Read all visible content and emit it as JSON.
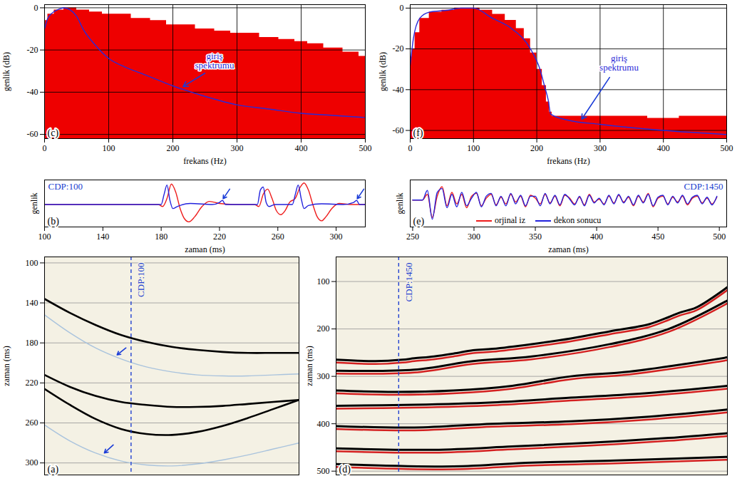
{
  "chart_data": [
    {
      "type": "line",
      "title": "(a)",
      "y_label": "zaman (ms)",
      "xlim": [
        0,
        100
      ],
      "ylim": [
        312,
        94
      ],
      "yticks": [
        100,
        140,
        180,
        220,
        260,
        300
      ],
      "tick_labels": "y",
      "grid": true,
      "series": [
        {
          "color": "#000000",
          "x": [
            0,
            10,
            20,
            30,
            40,
            50,
            60,
            70,
            80,
            90,
            100
          ],
          "values": [
            136,
            150,
            162,
            172,
            179,
            184,
            187,
            189,
            190,
            190,
            190
          ]
        },
        {
          "color": "#000000",
          "x": [
            0,
            10,
            20,
            30,
            40,
            50,
            60,
            70,
            80,
            90,
            100
          ],
          "values": [
            212,
            224,
            233,
            239,
            242,
            244,
            244,
            243,
            241,
            239,
            237
          ]
        },
        {
          "color": "#000000",
          "x": [
            0,
            10,
            20,
            30,
            40,
            50,
            60,
            70,
            80,
            90,
            100
          ],
          "values": [
            226,
            242,
            256,
            266,
            271,
            272,
            269,
            263,
            255,
            246,
            237
          ]
        },
        {
          "color": "#a9c3dd",
          "x": [
            0,
            10,
            20,
            30,
            40,
            50,
            60,
            70,
            80,
            90,
            100
          ],
          "values": [
            152,
            170,
            185,
            196,
            204,
            209,
            212,
            213,
            213,
            212,
            211
          ]
        },
        {
          "color": "#a9c3dd",
          "x": [
            0,
            10,
            20,
            30,
            40,
            50,
            60,
            70,
            80,
            90,
            100
          ],
          "values": [
            262,
            278,
            290,
            298,
            302,
            303,
            301,
            297,
            292,
            286,
            280
          ]
        }
      ],
      "annotations": [
        {
          "text": "CDP:100",
          "x": 34
        }
      ],
      "arrows": [
        {
          "x1": 32,
          "y1": 185,
          "x2": 28.5,
          "y2": 192
        },
        {
          "x1": 27,
          "y1": 282,
          "x2": 23.5,
          "y2": 290
        }
      ]
    },
    {
      "type": "line",
      "title": "(b)",
      "x_label": "zaman (ms)",
      "y_label": "genlik",
      "xlim": [
        100,
        320
      ],
      "xticks": [
        100,
        140,
        180,
        220,
        260,
        300
      ],
      "ylim": [
        -1.1,
        1.2
      ],
      "tick_labels": "x",
      "series": [
        {
          "color": "#ee1c1c",
          "x": [
            100,
            178,
            181,
            184,
            187,
            190,
            193,
            196,
            199,
            203,
            208,
            213,
            220,
            230,
            244,
            247,
            250,
            253,
            256,
            259,
            262,
            265,
            268,
            272,
            275,
            278,
            281,
            284,
            287,
            290,
            293,
            297,
            302,
            310,
            320
          ],
          "values": [
            0,
            0,
            -0.1,
            0.3,
            1.0,
            0.6,
            -0.2,
            -0.7,
            -0.85,
            -0.6,
            -0.1,
            0.15,
            0.05,
            0,
            0,
            -0.1,
            0.5,
            0.75,
            0.3,
            -0.3,
            -0.5,
            -0.3,
            0.1,
            0.3,
            0.8,
            1.05,
            0.7,
            0,
            -0.6,
            -0.8,
            -0.6,
            -0.2,
            0.05,
            0,
            0
          ]
        },
        {
          "color": "#2222dd",
          "x": [
            100,
            180,
            182,
            184,
            186,
            188,
            191,
            200,
            215,
            220,
            222,
            224,
            240,
            246,
            248,
            250,
            252,
            254,
            258,
            270,
            272,
            274,
            276,
            278,
            281,
            290,
            305,
            312,
            314,
            316,
            320
          ],
          "values": [
            0,
            0,
            0.5,
            0.95,
            0.2,
            -0.2,
            -0.1,
            0.05,
            0,
            0.1,
            0.2,
            0,
            0,
            0,
            0.7,
            0.85,
            0.1,
            -0.1,
            0,
            0,
            0.5,
            0.95,
            0.3,
            -0.2,
            -0.05,
            0.03,
            0,
            0.1,
            0.2,
            0,
            0
          ]
        }
      ],
      "annotations": [
        {
          "text": "CDP:100"
        }
      ],
      "arrows": [
        {
          "x1": 227,
          "y1": 0.75,
          "x2": 222.5,
          "y2": 0.28
        },
        {
          "x1": 319,
          "y1": 0.75,
          "x2": 314.5,
          "y2": 0.28
        }
      ]
    },
    {
      "type": "area",
      "title": "(c)",
      "x_label": "frekans (Hz)",
      "y_label": "genlik (dB)",
      "xlim": [
        0,
        500
      ],
      "xticks": [
        0,
        100,
        200,
        300,
        400,
        500
      ],
      "ylim": [
        -62,
        1.5
      ],
      "yticks": [
        0,
        -20,
        -40,
        -60
      ],
      "grid": true,
      "series": [
        {
          "type": "area",
          "color": "#ee0000",
          "x": [
            0,
            10,
            20,
            40,
            60,
            80,
            100,
            120,
            150,
            180,
            200,
            220,
            250,
            280,
            300,
            320,
            350,
            380,
            400,
            420,
            450,
            480,
            500
          ],
          "values": [
            -6,
            -3,
            -1,
            0,
            -1,
            -2,
            -3,
            -3,
            -5,
            -6,
            -8,
            -8,
            -10,
            -11,
            -12,
            -12,
            -14,
            -15,
            -16,
            -17,
            -19,
            -21,
            -23
          ]
        },
        {
          "type": "line",
          "color": "#2a2ad8",
          "x": [
            0,
            5,
            10,
            20,
            30,
            40,
            50,
            60,
            80,
            100,
            125,
            150,
            175,
            200,
            250,
            300,
            350,
            400,
            450,
            500
          ],
          "values": [
            -10,
            -5,
            -3,
            -1,
            0,
            -1,
            -4,
            -10,
            -18,
            -24,
            -28,
            -31,
            -34,
            -37,
            -42,
            -46,
            -48,
            -50,
            -51,
            -52
          ]
        }
      ],
      "annotations": [
        {
          "text": "giriş spektrumu",
          "x": 265,
          "y": -25
        }
      ],
      "arrows": [
        {
          "x1": 250,
          "y1": -31,
          "x2": 216,
          "y2": -37.3
        }
      ]
    },
    {
      "type": "line",
      "title": "(d)",
      "y_label": "zaman (ms)",
      "xlim": [
        0,
        100
      ],
      "ylim": [
        508,
        48
      ],
      "yticks": [
        100,
        200,
        300,
        400,
        500
      ],
      "tick_labels": "y",
      "grid": true,
      "series": [
        {
          "color": "#000000",
          "x": [
            0,
            10,
            17,
            20,
            25,
            30,
            35,
            40,
            50,
            60,
            70,
            80,
            85,
            88,
            92,
            100
          ],
          "values": [
            265,
            268,
            265,
            262,
            258,
            252,
            245,
            242,
            232,
            220,
            205,
            190,
            175,
            165,
            155,
            112
          ]
        },
        {
          "color": "#000000",
          "x": [
            0,
            20,
            35,
            50,
            70,
            85,
            100
          ],
          "values": [
            288,
            286,
            268,
            258,
            232,
            200,
            140
          ]
        },
        {
          "color": "#000000",
          "x": [
            0,
            15,
            30,
            45,
            60,
            75,
            100
          ],
          "values": [
            330,
            333,
            330,
            320,
            300,
            290,
            260
          ]
        },
        {
          "color": "#000000",
          "x": [
            0,
            20,
            40,
            60,
            80,
            100
          ],
          "values": [
            362,
            360,
            355,
            345,
            335,
            320
          ]
        },
        {
          "color": "#000000",
          "x": [
            0,
            20,
            40,
            60,
            80,
            100
          ],
          "values": [
            405,
            408,
            400,
            395,
            385,
            370
          ]
        },
        {
          "color": "#000000",
          "x": [
            0,
            25,
            45,
            65,
            85,
            100
          ],
          "values": [
            452,
            455,
            448,
            440,
            430,
            420
          ]
        },
        {
          "color": "#000000",
          "x": [
            0,
            30,
            50,
            70,
            100
          ],
          "values": [
            485,
            490,
            482,
            478,
            470
          ]
        }
      ],
      "annotations": [
        {
          "text": "CDP:1450",
          "x": 16
        }
      ]
    },
    {
      "type": "line",
      "title": "(e)",
      "x_label": "zaman (ms)",
      "y_label": "genlik",
      "xlim": [
        248,
        506
      ],
      "xticks": [
        250,
        300,
        350,
        400,
        450,
        500
      ],
      "ylim": [
        -1.4,
        1.05
      ],
      "tick_labels": "x",
      "legend": "bottom",
      "x": [
        250,
        254,
        258,
        262,
        266,
        270,
        274,
        278,
        282,
        286,
        290,
        294,
        298,
        302,
        306,
        310,
        314,
        318,
        322,
        326,
        330,
        334,
        338,
        342,
        346,
        350,
        354,
        358,
        362,
        366,
        370,
        374,
        378,
        382,
        386,
        390,
        394,
        398,
        402,
        406,
        410,
        414,
        418,
        422,
        426,
        430,
        434,
        438,
        442,
        446,
        450,
        454,
        458,
        462,
        466,
        470,
        474,
        478,
        482,
        486,
        490,
        494,
        498
      ],
      "series": [
        {
          "name": "orjinal iz",
          "color": "#ee1c1c",
          "values": [
            0,
            0,
            0,
            0.3,
            -0.9,
            0.2,
            0.7,
            -0.3,
            0.4,
            -0.2,
            0.3,
            -0.4,
            0.2,
            0.35,
            -0.3,
            0.1,
            0.3,
            -0.25,
            0.15,
            -0.2,
            0.3,
            -0.1,
            0.2,
            -0.35,
            0.25,
            0.1,
            -0.2,
            0.3,
            -0.15,
            0.2,
            -0.3,
            0.25,
            0.1,
            -0.2,
            0.15,
            -0.25,
            0.3,
            -0.1,
            0.05,
            -0.2,
            0.2,
            -0.15,
            0.25,
            -0.1,
            0.15,
            -0.3,
            0.2,
            -0.1,
            0.35,
            -0.35,
            0.1,
            0.2,
            -0.2,
            0.15,
            -0.1,
            0.2,
            -0.25,
            0.1,
            0.2,
            -0.15,
            0.1,
            -0.2,
            0.15
          ]
        },
        {
          "name": "dekon sonucu",
          "color": "#2222dd",
          "values": [
            0,
            0,
            0,
            0.5,
            -1.0,
            0.4,
            0.6,
            -0.4,
            0.3,
            -0.35,
            0.4,
            -0.3,
            0.1,
            0.4,
            -0.35,
            0.2,
            0.35,
            -0.3,
            0.2,
            -0.3,
            0.35,
            -0.2,
            0.25,
            -0.3,
            0.2,
            0.2,
            -0.3,
            0.35,
            -0.2,
            0.25,
            -0.25,
            0.3,
            0.05,
            -0.25,
            0.2,
            -0.3,
            0.25,
            -0.15,
            0.1,
            -0.25,
            0.25,
            -0.2,
            0.3,
            -0.15,
            0.2,
            -0.25,
            0.25,
            -0.15,
            0.3,
            -0.3,
            0.15,
            0.25,
            -0.25,
            0.2,
            -0.15,
            0.25,
            -0.2,
            0.15,
            0.25,
            -0.2,
            0.15,
            -0.25,
            0.2
          ]
        }
      ],
      "annotations": [
        {
          "text": "CDP:1450"
        }
      ]
    },
    {
      "type": "area",
      "title": "(f)",
      "x_label": "frekans (Hz)",
      "y_label": "genlik (dB)",
      "xlim": [
        0,
        500
      ],
      "xticks": [
        0,
        100,
        200,
        300,
        400,
        500
      ],
      "ylim": [
        -64,
        1.7
      ],
      "yticks": [
        0,
        -20,
        -40,
        -60
      ],
      "grid": true,
      "series": [
        {
          "type": "area",
          "color": "#ee0000",
          "x": [
            0,
            5,
            10,
            20,
            40,
            60,
            80,
            100,
            120,
            140,
            160,
            175,
            185,
            195,
            205,
            212,
            218,
            222,
            226,
            250,
            300,
            350,
            400,
            450,
            500
          ],
          "values": [
            -24,
            -20,
            -12,
            -5,
            -2,
            -1,
            0,
            0,
            -1,
            -3,
            -6,
            -10,
            -15,
            -22,
            -30,
            -38,
            -46,
            -51,
            -53,
            -53,
            -53,
            -53,
            -54,
            -53,
            -53
          ]
        },
        {
          "type": "line",
          "color": "#2a2ad8",
          "x": [
            0,
            5,
            15,
            30,
            60,
            80,
            100,
            130,
            160,
            190,
            205,
            212,
            218,
            222,
            250,
            300,
            400,
            500
          ],
          "values": [
            -28,
            -15,
            -5,
            -2,
            -1,
            0,
            0,
            -5,
            -10,
            -20,
            -30,
            -38,
            -45,
            -52,
            -55,
            -57,
            -60,
            -62
          ]
        }
      ],
      "annotations": [
        {
          "text": "giriş spektrumu",
          "x": 330,
          "y": -27
        }
      ],
      "arrows": [
        {
          "x1": 315,
          "y1": -34,
          "x2": 271,
          "y2": -54.5
        }
      ]
    }
  ]
}
